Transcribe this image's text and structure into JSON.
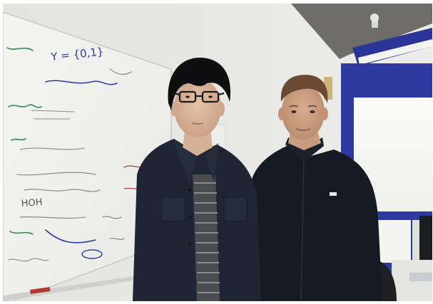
{
  "scene": {
    "description_subjects": [
      "person-left",
      "person-right"
    ],
    "colors": {
      "wall": "#e6e6e2",
      "ceiling": "#6f6d68",
      "whiteboard": "#f1f1ef",
      "window_frame": "#2f3aa0",
      "window_light": "#f7f8f4",
      "jacket_left": "#1f2533",
      "sweater_right": "#161a22",
      "marker_green": "#2f8a4a",
      "marker_blue": "#2a3b9b",
      "marker_red": "#b0443e"
    }
  },
  "whiteboard": {
    "scribbles": [
      "Y = {0,1}",
      "HOH"
    ]
  }
}
